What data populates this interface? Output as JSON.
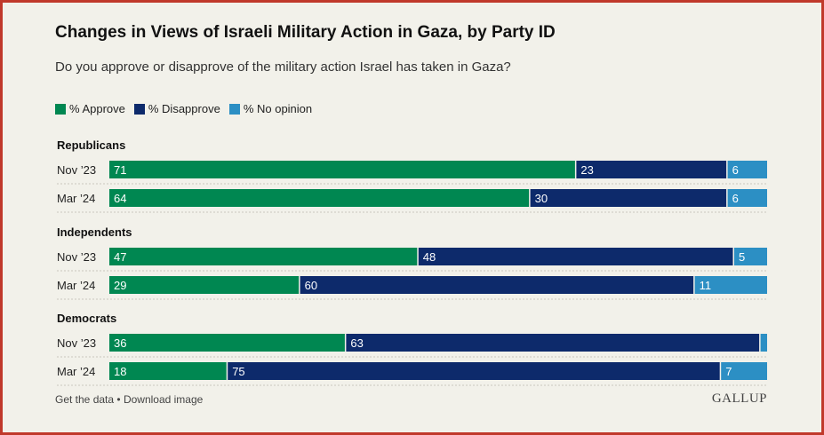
{
  "title": "Changes in Views of Israeli Military Action in Gaza, by Party ID",
  "subtitle": "Do you approve or disapprove of the military action Israel has taken in Gaza?",
  "footer": {
    "get_data": "Get the data",
    "separator": "•",
    "download": "Download image",
    "brand": "GALLUP"
  },
  "colors": {
    "approve": "#008751",
    "disapprove": "#0d2a6b",
    "no_opinion": "#2c8fc4"
  },
  "chart_data": {
    "type": "bar",
    "stacked": true,
    "orientation": "horizontal",
    "xlim": [
      0,
      100
    ],
    "legend": [
      "% Approve",
      "% Disapprove",
      "% No opinion"
    ],
    "legend_position": "top-left",
    "groups": [
      {
        "name": "Republicans",
        "rows": [
          {
            "label": "Nov ’23",
            "values": [
              71,
              23,
              6
            ],
            "labels": [
              "71",
              "23",
              "6"
            ]
          },
          {
            "label": "Mar ’24",
            "values": [
              64,
              30,
              6
            ],
            "labels": [
              "64",
              "30",
              "6"
            ]
          }
        ]
      },
      {
        "name": "Independents",
        "rows": [
          {
            "label": "Nov ’23",
            "values": [
              47,
              48,
              5
            ],
            "labels": [
              "47",
              "48",
              "5"
            ]
          },
          {
            "label": "Mar ’24",
            "values": [
              29,
              60,
              11
            ],
            "labels": [
              "29",
              "60",
              "11"
            ]
          }
        ]
      },
      {
        "name": "Democrats",
        "rows": [
          {
            "label": "Nov ’23",
            "values": [
              36,
              63,
              1
            ],
            "labels": [
              "36",
              "63",
              ""
            ]
          },
          {
            "label": "Mar ’24",
            "values": [
              18,
              75,
              7
            ],
            "labels": [
              "18",
              "75",
              "7"
            ]
          }
        ]
      }
    ]
  }
}
